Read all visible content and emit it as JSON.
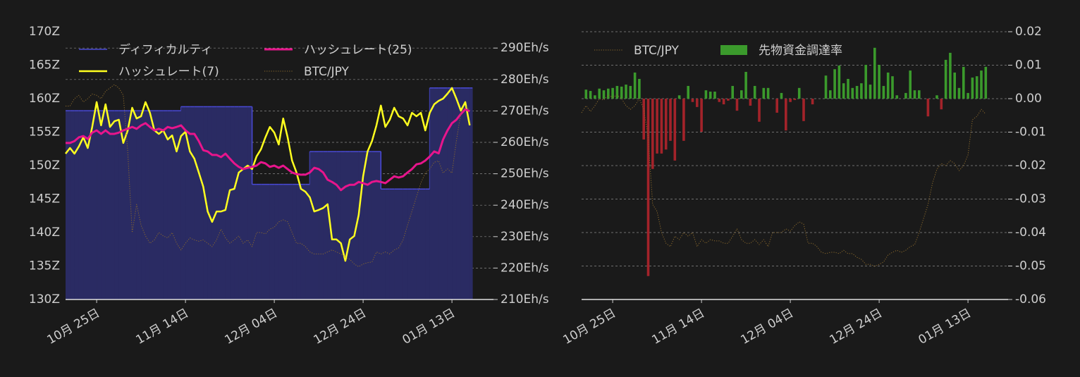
{
  "chart_data": [
    {
      "type": "line",
      "x": [
        "10月 18日",
        "10月 19日",
        "10月 20日",
        "10月 21日",
        "10月 22日",
        "10月 23日",
        "10月 24日",
        "10月 25日",
        "10月 26日",
        "10月 27日",
        "10月 28日",
        "10月 29日",
        "10月 30日",
        "10月 31日",
        "11月 01日",
        "11月 02日",
        "11月 03日",
        "11月 04日",
        "11月 05日",
        "11月 06日",
        "11月 07日",
        "11月 08日",
        "11月 09日",
        "11月 10日",
        "11月 11日",
        "11月 12日",
        "11月 13日",
        "11月 14日",
        "11月 15日",
        "11月 16日",
        "11月 17日",
        "11月 18日",
        "11月 19日",
        "11月 20日",
        "11月 21日",
        "11月 22日",
        "11月 23日",
        "11月 24日",
        "11月 25日",
        "11月 26日",
        "11月 27日",
        "11月 28日",
        "11月 29日",
        "11月 30日",
        "12月 01日",
        "12月 02日",
        "12月 03日",
        "12月 04日",
        "12月 05日",
        "12月 06日",
        "12月 07日",
        "12月 08日",
        "12月 09日",
        "12月 10日",
        "12月 11日",
        "12月 12日",
        "12月 13日",
        "12月 14日",
        "12月 15日",
        "12月 16日",
        "12月 17日",
        "12月 18日",
        "12月 19日",
        "12月 20日",
        "12月 21日",
        "12月 22日",
        "12月 23日",
        "12月 24日",
        "12月 25日",
        "12月 26日",
        "12月 27日",
        "12月 28日",
        "12月 29日",
        "12月 30日",
        "12月 31日",
        "01月 01日",
        "01月 02日",
        "01月 03日",
        "01月 04日",
        "01月 05日",
        "01月 06日",
        "01月 07日",
        "01月 08日",
        "01月 09日",
        "01月 10日",
        "01月 11日",
        "01月 12日",
        "01月 13日",
        "01月 14日",
        "01月 15日",
        "01月 16日",
        "01月 17日"
      ],
      "xticks": [
        "10月 25日",
        "11月 14日",
        "12月 04日",
        "12月 24日",
        "01月 13日"
      ],
      "ylim": [
        130,
        170
      ],
      "yticks": [
        {
          "value": 130,
          "label": "130Z"
        },
        {
          "value": 135,
          "label": "135Z"
        },
        {
          "value": 140,
          "label": "140Z"
        },
        {
          "value": 145,
          "label": "145Z"
        },
        {
          "value": 150,
          "label": "150Z"
        },
        {
          "value": 155,
          "label": "155Z"
        },
        {
          "value": 160,
          "label": "160Z"
        },
        {
          "value": 165,
          "label": "165Z"
        },
        {
          "value": 170,
          "label": "170Z"
        }
      ],
      "y2lim": [
        210,
        295.2
      ],
      "y2ticks": [
        {
          "value": 210,
          "label": "210Eh/s"
        },
        {
          "value": 220,
          "label": "220Eh/s"
        },
        {
          "value": 230,
          "label": "230Eh/s"
        },
        {
          "value": 240,
          "label": "240Eh/s"
        },
        {
          "value": 250,
          "label": "250Eh/s"
        },
        {
          "value": 260,
          "label": "260Eh/s"
        },
        {
          "value": 270,
          "label": "270Eh/s"
        },
        {
          "value": 280,
          "label": "280Eh/s"
        },
        {
          "value": 290,
          "label": "290Eh/s"
        }
      ],
      "grid": "y2",
      "y_axis_position": "left",
      "legend": "upper left",
      "legend_columns": 2,
      "series": [
        {
          "name": "ディフィカルティ",
          "type": "step-area",
          "color": "#4a4ad8",
          "fill": "#2a2b63",
          "values": [
            158.2,
            158.2,
            158.2,
            158.2,
            158.2,
            158.2,
            158.2,
            158.2,
            158.2,
            158.2,
            158.2,
            158.2,
            158.2,
            158.2,
            158.2,
            158.2,
            158.2,
            158.2,
            158.2,
            158.2,
            158.2,
            158.2,
            158.2,
            158.2,
            158.2,
            158.2,
            158.8,
            158.8,
            158.8,
            158.8,
            158.8,
            158.8,
            158.8,
            158.8,
            158.8,
            158.8,
            158.8,
            158.8,
            158.8,
            158.8,
            158.8,
            158.8,
            147.2,
            147.2,
            147.2,
            147.2,
            147.2,
            147.2,
            147.2,
            147.2,
            147.2,
            147.2,
            147.2,
            147.2,
            147.2,
            152.1,
            152.1,
            152.1,
            152.1,
            152.1,
            152.1,
            152.1,
            152.1,
            152.1,
            152.1,
            152.1,
            152.1,
            152.1,
            152.1,
            152.1,
            152.1,
            146.5,
            146.5,
            146.5,
            146.5,
            146.5,
            146.5,
            146.5,
            146.5,
            146.5,
            146.5,
            146.5,
            161.6,
            161.6,
            161.6,
            161.6,
            161.6,
            161.6,
            161.6,
            161.6,
            161.6,
            161.6
          ]
        },
        {
          "name": "ハッシュレート(7)",
          "type": "line",
          "axis": "y2",
          "color": "#ffff1f",
          "width": 2.5,
          "values": [
            256.4,
            258.2,
            256.4,
            258.7,
            261.6,
            258.2,
            264.9,
            272.8,
            265.4,
            272.1,
            264.9,
            266.7,
            267.2,
            259.8,
            263.8,
            271.0,
            267.6,
            268.3,
            272.8,
            269.4,
            263.8,
            262.7,
            263.8,
            260.9,
            262.2,
            257.1,
            262.0,
            263.4,
            257.1,
            254.8,
            250.4,
            245.9,
            238.0,
            234.7,
            238.0,
            238.0,
            238.5,
            244.8,
            245.2,
            250.4,
            251.5,
            252.6,
            251.5,
            255.5,
            257.8,
            261.6,
            264.9,
            263.1,
            259.3,
            267.6,
            261.6,
            254.2,
            250.4,
            245.2,
            244.3,
            242.5,
            238.0,
            238.5,
            239.1,
            240.3,
            229.1,
            229.1,
            227.9,
            222.3,
            229.1,
            230.2,
            236.9,
            249.2,
            257.1,
            260.4,
            265.4,
            271.7,
            264.9,
            267.2,
            271.0,
            268.3,
            267.6,
            265.4,
            269.4,
            268.3,
            269.4,
            263.8,
            269.4,
            272.1,
            273.2,
            273.9,
            275.5,
            277.3,
            273.9,
            270.1,
            272.8,
            265.4
          ]
        },
        {
          "name": "ハッシュレート(25)",
          "type": "line",
          "axis": "y2",
          "color": "#e8158c",
          "width": 3,
          "values": [
            259.8,
            259.8,
            260.4,
            261.6,
            262.0,
            261.1,
            263.1,
            263.8,
            262.7,
            263.8,
            262.7,
            262.7,
            263.1,
            263.8,
            264.3,
            264.9,
            264.3,
            265.4,
            266.1,
            264.9,
            263.8,
            264.3,
            263.8,
            264.9,
            264.5,
            264.9,
            265.4,
            263.8,
            262.7,
            262.7,
            260.4,
            257.5,
            257.1,
            256.0,
            256.0,
            255.3,
            256.4,
            254.8,
            253.3,
            252.2,
            251.5,
            251.9,
            252.2,
            252.6,
            253.7,
            253.3,
            252.2,
            252.6,
            251.9,
            252.6,
            251.5,
            250.4,
            249.9,
            249.7,
            249.7,
            250.4,
            251.9,
            251.5,
            250.4,
            248.1,
            247.4,
            246.5,
            244.8,
            245.9,
            246.5,
            246.5,
            247.4,
            247.0,
            246.5,
            247.4,
            247.7,
            247.4,
            247.0,
            248.1,
            249.2,
            248.8,
            249.2,
            250.4,
            251.5,
            253.0,
            253.3,
            254.2,
            255.5,
            257.1,
            256.5,
            260.9,
            263.8,
            266.1,
            267.2,
            269.0,
            270.5,
            269.9
          ]
        },
        {
          "name": "BTC/JPY",
          "type": "line",
          "dashed": true,
          "color": "#8c6a2c",
          "width": 1,
          "values": [
            158.9,
            158.9,
            160.0,
            160.5,
            159.5,
            160.0,
            160.7,
            160.5,
            160.0,
            161.1,
            161.6,
            162.1,
            161.6,
            160.5,
            152.1,
            140.0,
            144.2,
            141.1,
            139.5,
            138.4,
            138.9,
            140.0,
            139.5,
            139.2,
            140.0,
            138.4,
            137.4,
            138.4,
            139.2,
            138.9,
            138.7,
            138.9,
            138.4,
            137.9,
            138.9,
            140.5,
            139.2,
            138.4,
            138.9,
            139.5,
            138.4,
            138.9,
            137.9,
            140.0,
            140.0,
            139.8,
            140.5,
            140.8,
            141.6,
            141.9,
            141.6,
            140.0,
            138.4,
            138.4,
            137.9,
            137.1,
            136.8,
            136.8,
            136.8,
            137.1,
            137.4,
            137.1,
            136.8,
            136.3,
            136.0,
            135.3,
            134.9,
            135.3,
            135.5,
            135.6,
            137.1,
            136.8,
            137.1,
            136.8,
            137.4,
            137.7,
            138.9,
            141.1,
            143.2,
            145.3,
            147.4,
            148.9,
            149.5,
            150.5,
            150.7,
            148.9,
            149.5,
            148.9,
            153.7,
            157.9,
            158.9,
            158.4
          ]
        }
      ]
    },
    {
      "type": "bar",
      "x": [
        "10月 18日",
        "10月 19日",
        "10月 20日",
        "10月 21日",
        "10月 22日",
        "10月 23日",
        "10月 24日",
        "10月 25日",
        "10月 26日",
        "10月 27日",
        "10月 28日",
        "10月 29日",
        "10月 30日",
        "10月 31日",
        "11月 01日",
        "11月 02日",
        "11月 03日",
        "11月 04日",
        "11月 05日",
        "11月 06日",
        "11月 07日",
        "11月 08日",
        "11月 09日",
        "11月 10日",
        "11月 11日",
        "11月 12日",
        "11月 13日",
        "11月 14日",
        "11月 15日",
        "11月 16日",
        "11月 17日",
        "11月 18日",
        "11月 19日",
        "11月 20日",
        "11月 21日",
        "11月 22日",
        "11月 23日",
        "11月 24日",
        "11月 25日",
        "11月 26日",
        "11月 27日",
        "11月 28日",
        "11月 29日",
        "11月 30日",
        "12月 01日",
        "12月 02日",
        "12月 03日",
        "12月 04日",
        "12月 05日",
        "12月 06日",
        "12月 07日",
        "12月 08日",
        "12月 09日",
        "12月 10日",
        "12月 11日",
        "12月 12日",
        "12月 13日",
        "12月 14日",
        "12月 15日",
        "12月 16日",
        "12月 17日",
        "12月 18日",
        "12月 19日",
        "12月 20日",
        "12月 21日",
        "12月 22日",
        "12月 23日",
        "12月 24日",
        "12月 25日",
        "12月 26日",
        "12月 27日",
        "12月 28日",
        "12月 29日",
        "12月 30日",
        "12月 31日",
        "01月 01日",
        "01月 02日",
        "01月 03日",
        "01月 04日",
        "01月 05日",
        "01月 06日",
        "01月 07日",
        "01月 08日",
        "01月 09日",
        "01月 10日",
        "01月 11日",
        "01月 12日",
        "01月 13日",
        "01月 14日",
        "01月 15日",
        "01月 16日",
        "01月 17日"
      ],
      "xticks": [
        "10月 25日",
        "11月 14日",
        "12月 04日",
        "12月 24日",
        "01月 13日"
      ],
      "ylim": [
        -0.06,
        0.02
      ],
      "yticks": [
        -0.06,
        -0.05,
        -0.04,
        -0.03,
        -0.02,
        -0.01,
        {
          "value": 0,
          "label": "0.00"
        },
        0.01,
        0.02
      ],
      "grid": "y",
      "y_axis_position": "right",
      "legend": "upper left",
      "legend_columns": 2,
      "series": [
        {
          "name": "BTC/JPY",
          "type": "line",
          "dashed": true,
          "color": "#8c6a2c",
          "width": 1,
          "values": [
            -0.0042,
            -0.0021,
            -0.0038,
            -0.0021,
            0,
            -0.0004,
            0.0011,
            0.0004,
            0.0011,
            0,
            -0.0021,
            -0.0032,
            -0.0021,
            0,
            -0.0032,
            -0.0116,
            -0.0316,
            -0.0337,
            -0.04,
            -0.0432,
            -0.0442,
            -0.0411,
            -0.0421,
            -0.04,
            -0.0411,
            -0.04,
            -0.0442,
            -0.0421,
            -0.0432,
            -0.0421,
            -0.0425,
            -0.0425,
            -0.0432,
            -0.0432,
            -0.0411,
            -0.0389,
            -0.0421,
            -0.0432,
            -0.0432,
            -0.0421,
            -0.0436,
            -0.0421,
            -0.0442,
            -0.04,
            -0.04,
            -0.04,
            -0.0389,
            -0.0396,
            -0.0379,
            -0.0368,
            -0.0375,
            -0.0432,
            -0.0432,
            -0.0442,
            -0.0459,
            -0.0463,
            -0.0459,
            -0.0459,
            -0.0463,
            -0.0453,
            -0.0463,
            -0.0463,
            -0.0474,
            -0.048,
            -0.0495,
            -0.0495,
            -0.0501,
            -0.0495,
            -0.0488,
            -0.0467,
            -0.0459,
            -0.0453,
            -0.0459,
            -0.0453,
            -0.0442,
            -0.0436,
            -0.04,
            -0.0358,
            -0.0316,
            -0.0253,
            -0.0211,
            -0.0194,
            -0.02,
            -0.0185,
            -0.0194,
            -0.0215,
            -0.02,
            -0.0168,
            -0.0063,
            -0.0053,
            -0.0032,
            -0.0046
          ]
        },
        {
          "name": "先物資金調達率",
          "type": "bar",
          "color": "#3b9a2c",
          "negative_color": "#a3232a",
          "values": [
            0,
            0.0027,
            0.0023,
            0.001,
            0.003,
            0.0025,
            0.003,
            0.0032,
            0.0038,
            0.0036,
            0.0042,
            0.0038,
            0.0078,
            0.0059,
            -0.0122,
            -0.053,
            -0.021,
            -0.0164,
            -0.0164,
            -0.0152,
            -0.0126,
            -0.0185,
            0.001,
            -0.0126,
            0.0038,
            -0.001,
            -0.0025,
            -0.0099,
            0.0025,
            0.0021,
            0.0021,
            -0.001,
            -0.0017,
            -0.0006,
            0.0038,
            -0.0036,
            0.0025,
            0.008,
            -0.0021,
            0.0038,
            -0.0069,
            0.0032,
            0.0032,
            0,
            -0.0042,
            0.0017,
            -0.0095,
            -0.001,
            -0.0004,
            0.0032,
            -0.0067,
            0,
            -0.0017,
            0,
            0,
            0.0069,
            0.0025,
            0.0088,
            0.0099,
            0.0046,
            0.0059,
            0.0032,
            0.0038,
            0.0046,
            0.0101,
            0.0042,
            0.0152,
            0.0101,
            0.0038,
            0.0078,
            0.0067,
            0.001,
            0,
            0.0017,
            0.0084,
            0.0025,
            0.0025,
            0,
            -0.0053,
            0,
            0.001,
            -0.0032,
            0.0116,
            0.0137,
            0.0078,
            0.0032,
            0.0095,
            0.0017,
            0.0063,
            0.0067,
            0.0084,
            0.0095
          ]
        }
      ]
    }
  ]
}
